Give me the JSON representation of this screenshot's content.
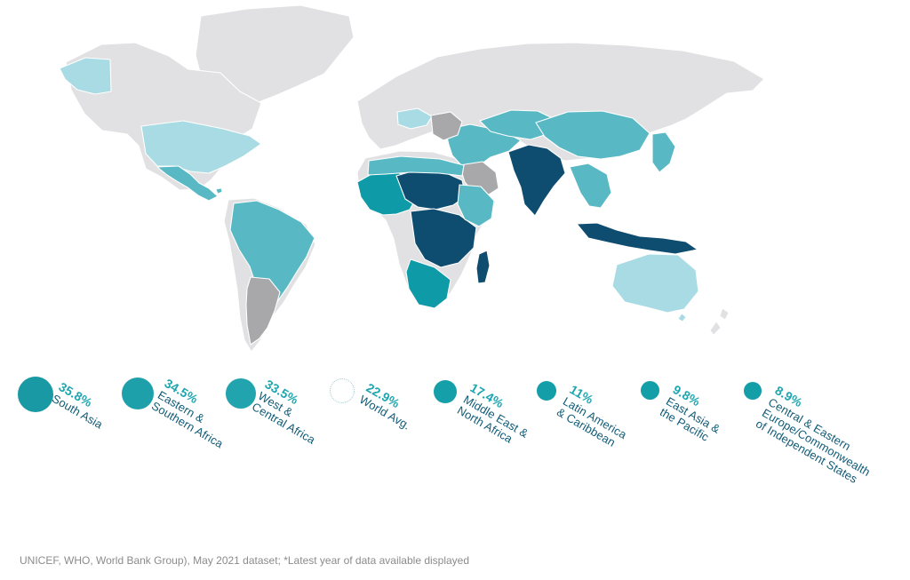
{
  "map": {
    "colors": {
      "base_gray": "#e1e1e3",
      "mid_gray": "#a8a8aa",
      "light_teal": "#a8dbe3",
      "teal": "#58b9c5",
      "bright_teal": "#0f9aa7",
      "dark_navy": "#0f4d70"
    }
  },
  "legend": {
    "items": [
      {
        "value": "35.8%",
        "label_line1": "South Asia",
        "label_line2": "",
        "label_line3": "",
        "circle_color": "#1899a3",
        "circle_style": "filled",
        "circle_size": 40
      },
      {
        "value": "34.5%",
        "label_line1": "Eastern &",
        "label_line2": "Southern Africa",
        "label_line3": "",
        "circle_color": "#1ea0ab",
        "circle_style": "filled",
        "circle_size": 36
      },
      {
        "value": "33.5%",
        "label_line1": "West &",
        "label_line2": "Central Africa",
        "label_line3": "",
        "circle_color": "#21a4ae",
        "circle_style": "filled",
        "circle_size": 34
      },
      {
        "value": "22.9%",
        "label_line1": "World Avg.",
        "label_line2": "",
        "label_line3": "",
        "circle_color": "#ffffff",
        "circle_style": "outline",
        "circle_size": 28
      },
      {
        "value": "17.4%",
        "label_line1": "Middle East &",
        "label_line2": "North Africa",
        "label_line3": "",
        "circle_color": "#159fa9",
        "circle_style": "filled",
        "circle_size": 26
      },
      {
        "value": "11%",
        "label_line1": "Latin America",
        "label_line2": "& Caribbean",
        "label_line3": "",
        "circle_color": "#139ea8",
        "circle_style": "filled",
        "circle_size": 22
      },
      {
        "value": "9.8%",
        "label_line1": "East Asia &",
        "label_line2": "the Pacific",
        "label_line3": "",
        "circle_color": "#149ea8",
        "circle_style": "filled",
        "circle_size": 21
      },
      {
        "value": "8.9%",
        "label_line1": "Central & Eastern",
        "label_line2": "Europe/Commonwealth",
        "label_line3": "of Independent States",
        "circle_color": "#149ea8",
        "circle_style": "filled",
        "circle_size": 20
      }
    ]
  },
  "footer": {
    "text": "UNICEF, WHO, World Bank Group), May 2021 dataset; *Latest year of data available displayed"
  }
}
